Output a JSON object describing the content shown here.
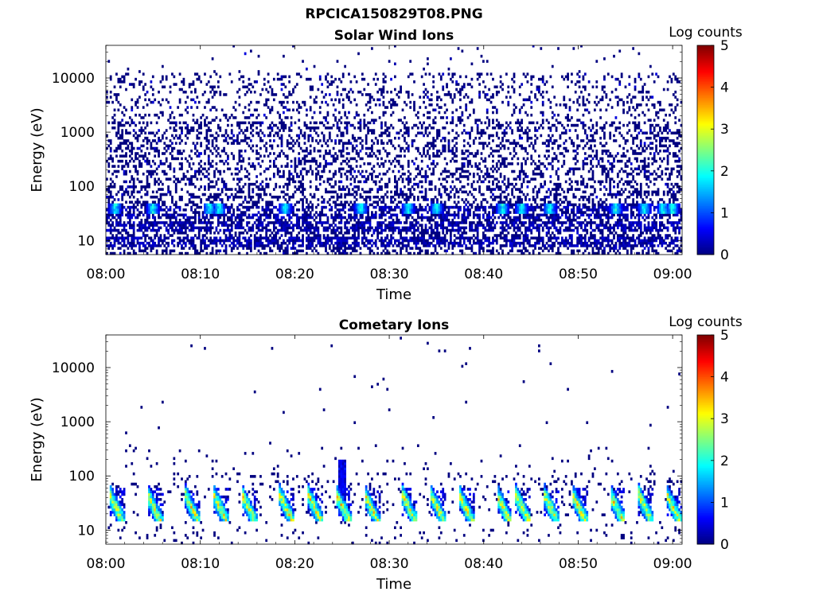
{
  "figure": {
    "title": "RPCICA150829T08.PNG"
  },
  "chart_data": [
    {
      "type": "heatmap",
      "title": "Solar Wind Ions",
      "xlabel": "Time",
      "ylabel": "Energy (eV)",
      "xticks": [
        "08:00",
        "08:10",
        "08:20",
        "08:30",
        "08:40",
        "08:50",
        "09:00"
      ],
      "xlim": [
        "08:00",
        "09:01"
      ],
      "yscale": "log",
      "ylim": [
        5.5,
        40000
      ],
      "yticks": [
        10,
        100,
        1000,
        10000
      ],
      "ytick_labels": [
        "10",
        "100",
        "1000",
        "10000"
      ],
      "colorbar": {
        "label": "Log counts",
        "range": [
          0,
          5
        ],
        "ticks": [
          "0",
          "1",
          "2",
          "3",
          "4",
          "5"
        ],
        "colormap": "jet"
      },
      "background": "#ffffff",
      "pattern": {
        "low_energy_bands_eV": [
          [
            8,
            12
          ],
          [
            14,
            22
          ],
          [
            24,
            30
          ],
          [
            35,
            45
          ]
        ],
        "scatter_density": 0.25,
        "hotspot_times": [
          "08:01",
          "08:05",
          "08:11",
          "08:12",
          "08:19",
          "08:27",
          "08:32",
          "08:35",
          "08:42",
          "08:44",
          "08:47",
          "08:54",
          "08:57",
          "08:59",
          "09:00"
        ],
        "hotspot_energy_eV": 40,
        "hotspot_peak_log_counts": 2.3
      }
    },
    {
      "type": "heatmap",
      "title": "Cometary Ions",
      "xlabel": "Time",
      "ylabel": "Energy (eV)",
      "xticks": [
        "08:00",
        "08:10",
        "08:20",
        "08:30",
        "08:40",
        "08:50",
        "09:00"
      ],
      "xlim": [
        "08:00",
        "09:01"
      ],
      "yscale": "log",
      "ylim": [
        5.5,
        40000
      ],
      "yticks": [
        10,
        100,
        1000,
        10000
      ],
      "ytick_labels": [
        "10",
        "100",
        "1000",
        "10000"
      ],
      "colorbar": {
        "label": "Log counts",
        "range": [
          0,
          5
        ],
        "ticks": [
          "0",
          "1",
          "2",
          "3",
          "4",
          "5"
        ],
        "colormap": "jet"
      },
      "background": "#ffffff",
      "pattern": {
        "main_band_eV": [
          18,
          60
        ],
        "burst_times": [
          "08:01",
          "08:05",
          "08:09",
          "08:12",
          "08:15",
          "08:19",
          "08:22",
          "08:25",
          "08:28",
          "08:32",
          "08:35",
          "08:38",
          "08:42",
          "08:44",
          "08:47",
          "08:50",
          "08:54",
          "08:57",
          "09:00"
        ],
        "burst_peak_log_counts": 3.8,
        "vertical_spike_time": "08:25",
        "vertical_spike_top_eV": 200,
        "high_energy_scatter_density": 0.004
      }
    }
  ]
}
